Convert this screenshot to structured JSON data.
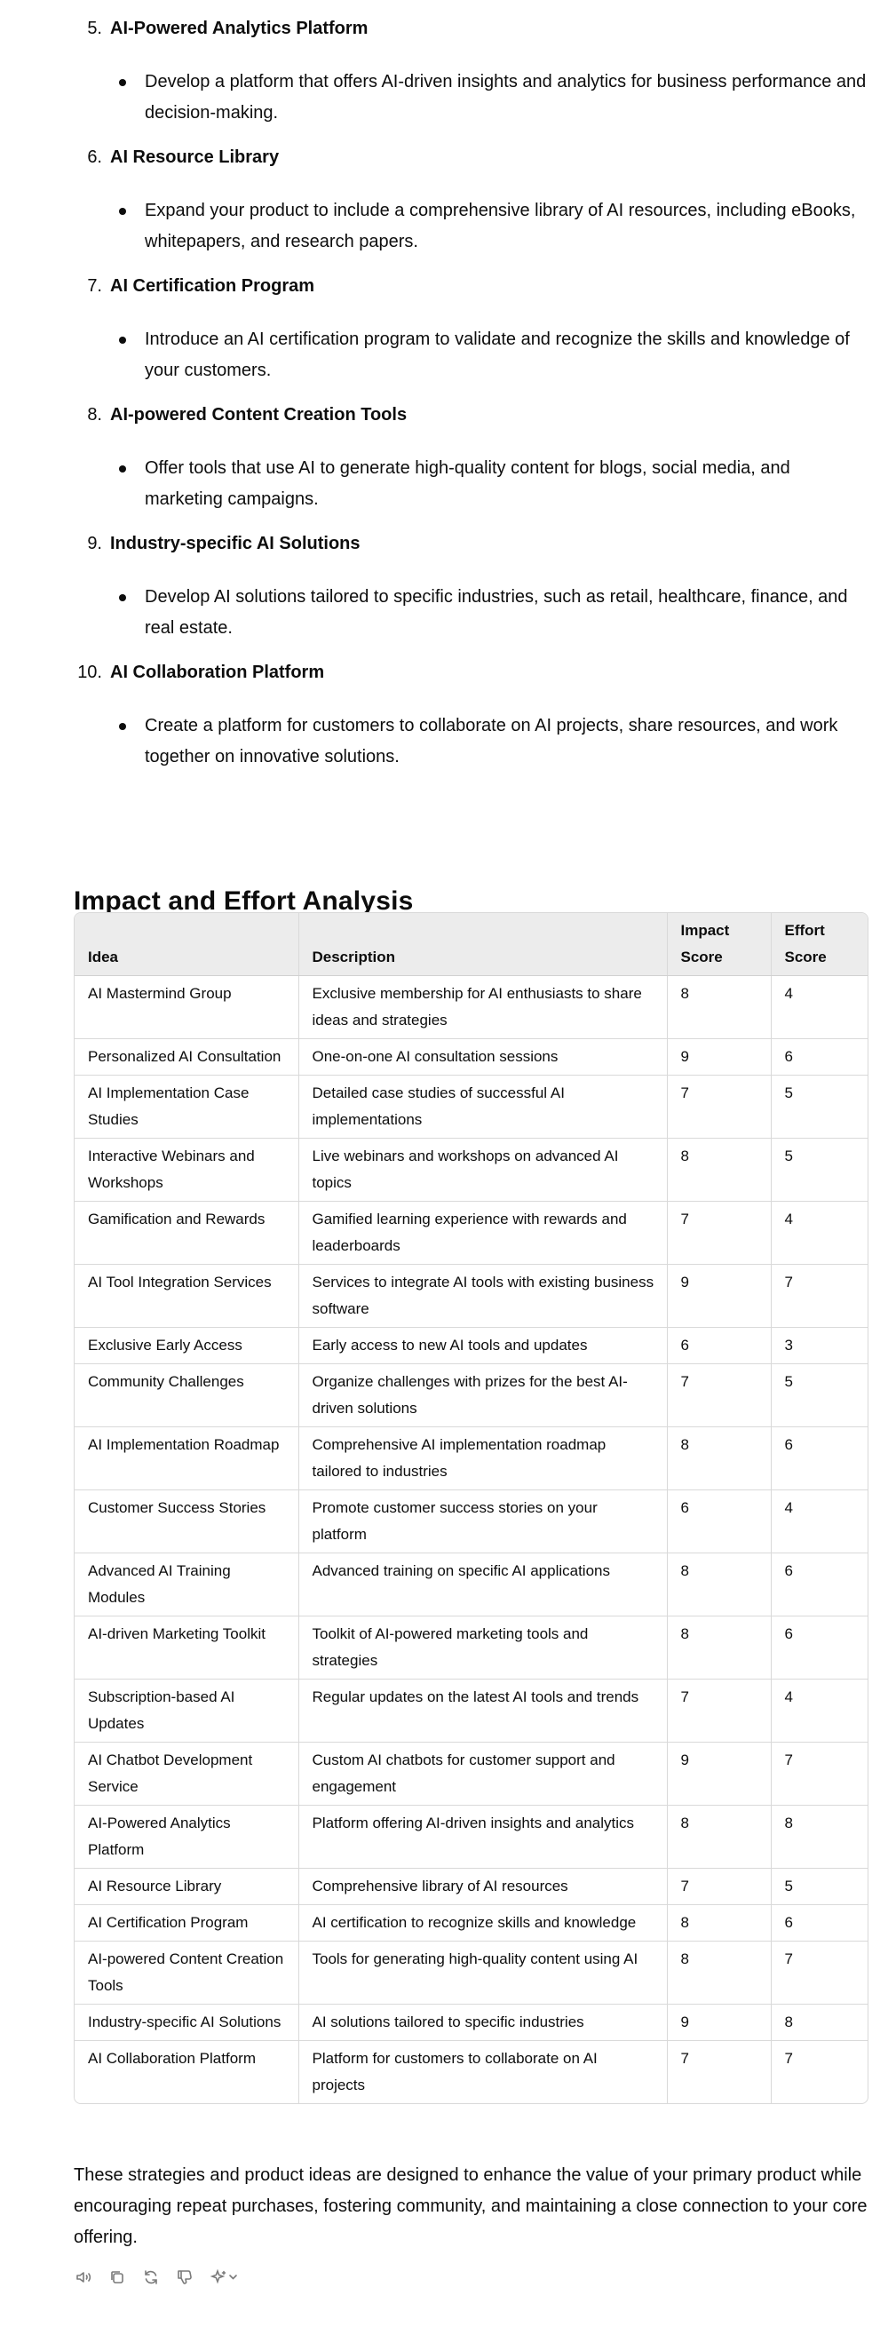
{
  "ideas": [
    {
      "num": "5.",
      "title": "AI-Powered Analytics Platform",
      "bullet": "Develop a platform that offers AI-driven insights and analytics for business performance and decision-making."
    },
    {
      "num": "6.",
      "title": "AI Resource Library",
      "bullet": "Expand your product to include a comprehensive library of AI resources, including eBooks, whitepapers, and research papers."
    },
    {
      "num": "7.",
      "title": "AI Certification Program",
      "bullet": "Introduce an AI certification program to validate and recognize the skills and knowledge of your customers."
    },
    {
      "num": "8.",
      "title": "AI-powered Content Creation Tools",
      "bullet": "Offer tools that use AI to generate high-quality content for blogs, social media, and marketing campaigns."
    },
    {
      "num": "9.",
      "title": "Industry-specific AI Solutions",
      "bullet": "Develop AI solutions tailored to specific industries, such as retail, healthcare, finance, and real estate."
    },
    {
      "num": "10.",
      "title": "AI Collaboration Platform",
      "bullet": "Create a platform for customers to collaborate on AI projects, share resources, and work together on innovative solutions."
    }
  ],
  "analysis": {
    "heading": "Impact and Effort Analysis",
    "headers": {
      "idea": "Idea",
      "description": "Description",
      "impact": "Impact Score",
      "effort": "Effort Score"
    },
    "rows": [
      {
        "idea": "AI Mastermind Group",
        "description": "Exclusive membership for AI enthusiasts to share ideas and strategies",
        "impact": "8",
        "effort": "4"
      },
      {
        "idea": "Personalized AI Consultation",
        "description": "One-on-one AI consultation sessions",
        "impact": "9",
        "effort": "6"
      },
      {
        "idea": "AI Implementation Case Studies",
        "description": "Detailed case studies of successful AI implementations",
        "impact": "7",
        "effort": "5"
      },
      {
        "idea": "Interactive Webinars and Workshops",
        "description": "Live webinars and workshops on advanced AI topics",
        "impact": "8",
        "effort": "5"
      },
      {
        "idea": "Gamification and Rewards",
        "description": "Gamified learning experience with rewards and leaderboards",
        "impact": "7",
        "effort": "4"
      },
      {
        "idea": "AI Tool Integration Services",
        "description": "Services to integrate AI tools with existing business software",
        "impact": "9",
        "effort": "7"
      },
      {
        "idea": "Exclusive Early Access",
        "description": "Early access to new AI tools and updates",
        "impact": "6",
        "effort": "3"
      },
      {
        "idea": "Community Challenges",
        "description": "Organize challenges with prizes for the best AI-driven solutions",
        "impact": "7",
        "effort": "5"
      },
      {
        "idea": "AI Implementation Roadmap",
        "description": "Comprehensive AI implementation roadmap tailored to industries",
        "impact": "8",
        "effort": "6"
      },
      {
        "idea": "Customer Success Stories",
        "description": "Promote customer success stories on your platform",
        "impact": "6",
        "effort": "4"
      },
      {
        "idea": "Advanced AI Training Modules",
        "description": "Advanced training on specific AI applications",
        "impact": "8",
        "effort": "6"
      },
      {
        "idea": "AI-driven Marketing Toolkit",
        "description": "Toolkit of AI-powered marketing tools and strategies",
        "impact": "8",
        "effort": "6"
      },
      {
        "idea": "Subscription-based AI Updates",
        "description": "Regular updates on the latest AI tools and trends",
        "impact": "7",
        "effort": "4"
      },
      {
        "idea": "AI Chatbot Development Service",
        "description": "Custom AI chatbots for customer support and engagement",
        "impact": "9",
        "effort": "7"
      },
      {
        "idea": "AI-Powered Analytics Platform",
        "description": "Platform offering AI-driven insights and analytics",
        "impact": "8",
        "effort": "8"
      },
      {
        "idea": "AI Resource Library",
        "description": "Comprehensive library of AI resources",
        "impact": "7",
        "effort": "5"
      },
      {
        "idea": "AI Certification Program",
        "description": "AI certification to recognize skills and knowledge",
        "impact": "8",
        "effort": "6"
      },
      {
        "idea": "AI-powered Content Creation Tools",
        "description": "Tools for generating high-quality content using AI",
        "impact": "8",
        "effort": "7"
      },
      {
        "idea": "Industry-specific AI Solutions",
        "description": "AI solutions tailored to specific industries",
        "impact": "9",
        "effort": "8"
      },
      {
        "idea": "AI Collaboration Platform",
        "description": "Platform for customers to collaborate on AI projects",
        "impact": "7",
        "effort": "7"
      }
    ]
  },
  "closing": "These strategies and product ideas are designed to enhance the value of your primary product while encouraging repeat purchases, fostering community, and maintaining a close connection to your core offering.",
  "actions": [
    {
      "name": "read-aloud-icon"
    },
    {
      "name": "copy-icon"
    },
    {
      "name": "regenerate-icon"
    },
    {
      "name": "thumbs-down-icon"
    },
    {
      "name": "sparkle-model-icon"
    }
  ]
}
